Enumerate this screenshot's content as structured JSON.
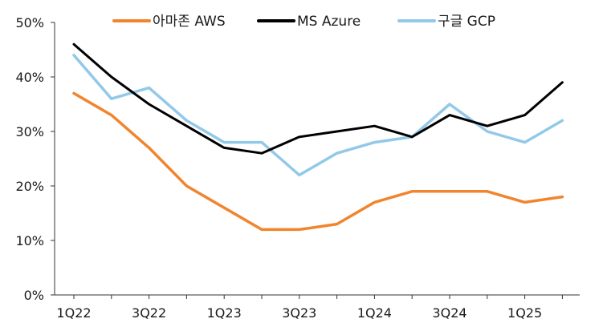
{
  "chart_data": {
    "type": "line",
    "x": [
      "1Q22",
      "2Q22",
      "3Q22",
      "4Q22",
      "1Q23",
      "2Q23",
      "3Q23",
      "4Q23",
      "1Q24",
      "2Q24",
      "3Q24",
      "4Q24",
      "1Q25",
      "2Q25"
    ],
    "x_tick_labels": [
      "1Q22",
      "3Q22",
      "1Q23",
      "3Q23",
      "1Q24",
      "3Q24",
      "1Q25"
    ],
    "y_tick_labels": [
      "0%",
      "10%",
      "20%",
      "30%",
      "40%",
      "50%"
    ],
    "ylim": [
      0,
      50
    ],
    "y_unit": "%",
    "grid": false,
    "legend": "top",
    "series": [
      {
        "name": "아마존 AWS",
        "color": "#f0852d",
        "values": [
          37,
          33,
          27,
          20,
          16,
          12,
          12,
          13,
          17,
          19,
          19,
          19,
          17,
          18
        ]
      },
      {
        "name": "MS Azure",
        "color": "#000000",
        "values": [
          46,
          40,
          35,
          31,
          27,
          26,
          29,
          30,
          31,
          29,
          33,
          31,
          33,
          39
        ]
      },
      {
        "name": "구글 GCP",
        "color": "#93c9e8",
        "values": [
          44,
          36,
          38,
          32,
          28,
          28,
          22,
          26,
          28,
          29,
          35,
          30,
          28,
          32
        ]
      }
    ]
  }
}
